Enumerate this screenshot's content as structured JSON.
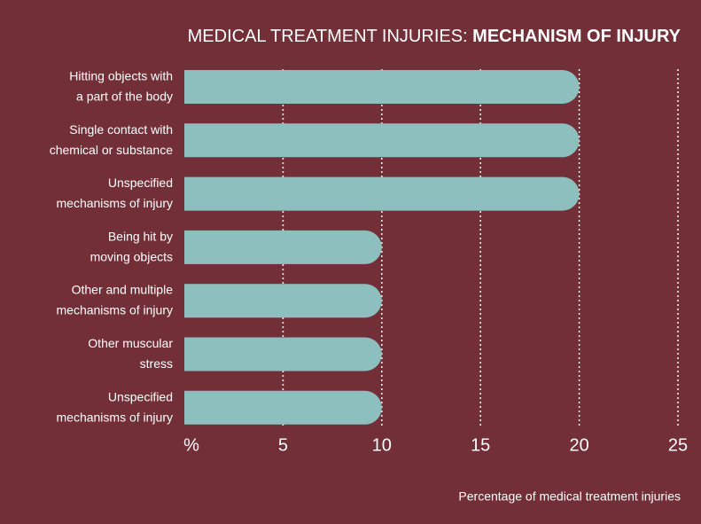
{
  "chart_data": {
    "type": "bar",
    "orientation": "horizontal",
    "title": "MEDICAL TREATMENT INJURIES:",
    "title_emphasis": "MECHANISM OF INJURY",
    "x_label": "Percentage of medical treatment injuries",
    "categories": [
      "Hitting objects with\na part of the body",
      "Single contact with\nchemical or substance",
      "Unspecified\nmechanisms of injury",
      "Being hit by\nmoving objects",
      "Other and multiple\nmechanisms of injury",
      "Other muscular\nstress",
      "Unspecified\nmechanisms of injury"
    ],
    "values": [
      20,
      20,
      20,
      10,
      10,
      10,
      10
    ],
    "color": "#8dbfbf",
    "xlim": [
      0,
      25
    ],
    "xticks": [
      {
        "value": 0,
        "label": "%"
      },
      5,
      10,
      15,
      20,
      25
    ],
    "grid": true
  }
}
